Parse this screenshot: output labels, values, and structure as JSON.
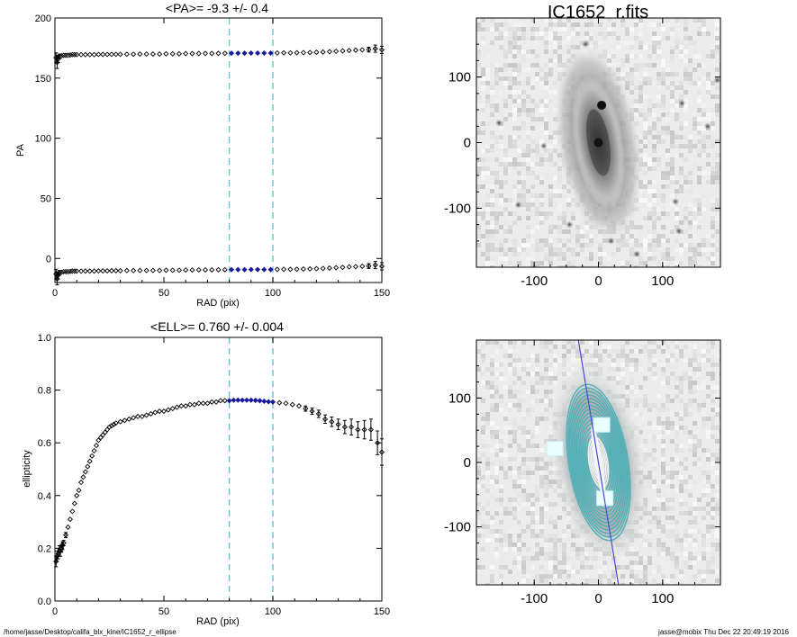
{
  "footer": {
    "path": "/home/jasse/Desktop/califa_blx_kine/IC1652_r_ellipse",
    "user_stamp": "jasse@mobix  Thu Dec 22 20:49:19 2016"
  },
  "colors": {
    "reference_line": "#6cc8d8",
    "highlight_points": "#1a1a9a",
    "major_axis_line": "#4a4ad0",
    "contours": "#4fb0b8"
  },
  "chart_data": [
    {
      "type": "scatter",
      "title": "<PA>=  -9.3 +/-   0.4",
      "xlabel": "RAD (pix)",
      "ylabel": "PA",
      "xlim": [
        0,
        150
      ],
      "ylim": [
        -20,
        200
      ],
      "xticks": [
        "0",
        "50",
        "100",
        "150"
      ],
      "yticks": [
        "0",
        "50",
        "100",
        "150",
        "200"
      ],
      "vlines": [
        80,
        100
      ],
      "highlight_range": [
        80,
        100
      ],
      "series": [
        {
          "x": [
            0.5,
            1,
            1.5,
            2,
            3,
            4,
            5,
            6,
            7,
            8,
            9,
            10,
            12,
            14,
            16,
            18,
            20,
            22,
            24,
            26,
            28,
            30,
            33,
            36,
            39,
            42,
            45,
            48,
            51,
            54,
            57,
            60,
            63,
            66,
            69,
            72,
            75,
            78,
            81,
            84,
            87,
            90,
            93,
            96,
            99,
            102,
            105,
            108,
            111,
            114,
            117,
            120,
            123,
            126,
            129,
            132,
            135,
            138,
            141,
            144,
            147,
            150
          ],
          "y": [
            -13,
            -17,
            -14,
            -12,
            -11.5,
            -11,
            -11,
            -11,
            -10.8,
            -10.5,
            -10.5,
            -10.5,
            -10.5,
            -10.5,
            -10.5,
            -10.5,
            -10.3,
            -10.3,
            -10.3,
            -10.2,
            -10.2,
            -10.2,
            -10.1,
            -10.1,
            -10,
            -10,
            -10,
            -10,
            -9.8,
            -9.8,
            -9.8,
            -9.6,
            -9.6,
            -9.5,
            -9.5,
            -9.5,
            -9.4,
            -9.4,
            -9.3,
            -9.3,
            -9.3,
            -9.2,
            -9.2,
            -9.2,
            -9.2,
            -9.1,
            -9,
            -9,
            -8.9,
            -8.8,
            -8.7,
            -8.5,
            -8.3,
            -8,
            -7.7,
            -7.4,
            -7,
            -6.8,
            -6.5,
            -6.3,
            -5.5,
            -6.5
          ],
          "err": [
            4,
            5,
            3,
            2,
            1.5,
            1,
            1,
            0.8,
            0.8,
            0.6,
            0.6,
            0.5,
            0.5,
            0.5,
            0.5,
            0.5,
            0.4,
            0.4,
            0.4,
            0.4,
            0.4,
            0.4,
            0.4,
            0.4,
            0.4,
            0.4,
            0.4,
            0.4,
            0.4,
            0.4,
            0.4,
            0.4,
            0.4,
            0.4,
            0.4,
            0.4,
            0.4,
            0.4,
            0.4,
            0.4,
            0.4,
            0.4,
            0.4,
            0.4,
            0.4,
            0.5,
            0.5,
            0.5,
            0.5,
            0.5,
            0.6,
            0.6,
            0.7,
            0.8,
            0.9,
            1,
            1.2,
            1.4,
            1.6,
            2,
            3,
            3
          ]
        }
      ],
      "mirror_offset": 180
    },
    {
      "type": "scatter",
      "title": "<ELL>= 0.760 +/-   0.004",
      "xlabel": "RAD (pix)",
      "ylabel": "ellipticity",
      "xlim": [
        0,
        150
      ],
      "ylim": [
        0,
        1
      ],
      "xticks": [
        "0",
        "50",
        "100",
        "150"
      ],
      "yticks": [
        "0.0",
        "0.2",
        "0.4",
        "0.6",
        "0.8",
        "1.0"
      ],
      "vlines": [
        80,
        100
      ],
      "highlight_range": [
        80,
        100
      ],
      "series": [
        {
          "x": [
            0.5,
            1,
            1.5,
            2,
            2.5,
            3,
            3.5,
            4,
            5,
            6,
            7,
            8,
            9,
            10,
            11,
            12,
            13,
            14,
            15,
            16,
            17,
            18,
            19,
            20,
            21,
            22,
            23,
            24,
            25,
            26,
            27,
            28,
            30,
            32,
            34,
            36,
            38,
            40,
            42,
            44,
            46,
            48,
            50,
            52,
            54,
            56,
            58,
            60,
            62,
            64,
            66,
            68,
            70,
            72,
            74,
            76,
            78,
            80,
            82,
            84,
            86,
            88,
            90,
            92,
            94,
            96,
            98,
            100,
            103,
            106,
            109,
            112,
            115,
            118,
            121,
            124,
            127,
            130,
            133,
            136,
            139,
            142,
            145,
            148,
            150
          ],
          "y": [
            0.15,
            0.17,
            0.18,
            0.19,
            0.19,
            0.2,
            0.21,
            0.22,
            0.25,
            0.28,
            0.31,
            0.34,
            0.37,
            0.4,
            0.42,
            0.45,
            0.47,
            0.49,
            0.51,
            0.53,
            0.55,
            0.57,
            0.59,
            0.61,
            0.62,
            0.63,
            0.64,
            0.65,
            0.66,
            0.665,
            0.67,
            0.675,
            0.68,
            0.685,
            0.69,
            0.695,
            0.7,
            0.7,
            0.705,
            0.71,
            0.715,
            0.72,
            0.72,
            0.725,
            0.73,
            0.735,
            0.74,
            0.74,
            0.745,
            0.745,
            0.75,
            0.75,
            0.75,
            0.755,
            0.755,
            0.76,
            0.76,
            0.76,
            0.762,
            0.762,
            0.762,
            0.762,
            0.762,
            0.761,
            0.76,
            0.758,
            0.756,
            0.755,
            0.752,
            0.75,
            0.745,
            0.74,
            0.73,
            0.72,
            0.71,
            0.69,
            0.68,
            0.67,
            0.66,
            0.66,
            0.65,
            0.65,
            0.65,
            0.6,
            0.565
          ],
          "err": [
            0.02,
            0.02,
            0.02,
            0.02,
            0.02,
            0.015,
            0.015,
            0.01,
            0.01,
            0.008,
            0.008,
            0.006,
            0.006,
            0.005,
            0.005,
            0.005,
            0.005,
            0.004,
            0.004,
            0.004,
            0.004,
            0.004,
            0.004,
            0.004,
            0.004,
            0.004,
            0.004,
            0.004,
            0.004,
            0.004,
            0.004,
            0.004,
            0.004,
            0.004,
            0.004,
            0.004,
            0.004,
            0.004,
            0.004,
            0.004,
            0.004,
            0.004,
            0.004,
            0.004,
            0.004,
            0.004,
            0.004,
            0.004,
            0.004,
            0.004,
            0.004,
            0.004,
            0.004,
            0.004,
            0.004,
            0.004,
            0.004,
            0.004,
            0.004,
            0.004,
            0.004,
            0.004,
            0.004,
            0.004,
            0.004,
            0.004,
            0.004,
            0.004,
            0.005,
            0.006,
            0.007,
            0.008,
            0.01,
            0.012,
            0.014,
            0.016,
            0.018,
            0.02,
            0.025,
            0.03,
            0.03,
            0.035,
            0.04,
            0.045,
            0.05
          ]
        }
      ]
    },
    {
      "type": "heatmap",
      "title": "IC1652_r.fits",
      "xlim": [
        -190,
        190
      ],
      "ylim": [
        -190,
        190
      ],
      "xticks": [
        "-100",
        "0",
        "100"
      ],
      "yticks": [
        "-100",
        "0",
        "100"
      ],
      "galaxy": {
        "center": [
          0,
          0
        ],
        "semi_major": 150,
        "axis_ratio": 0.24,
        "pa_deg": -9.3
      },
      "bright_knots": [
        [
          5,
          57
        ],
        [
          0,
          0
        ]
      ],
      "field_stars": [
        [
          -125,
          -95
        ],
        [
          -85,
          -5
        ],
        [
          20,
          -150
        ],
        [
          130,
          60
        ],
        [
          185,
          95
        ],
        [
          170,
          25
        ],
        [
          -45,
          -125
        ],
        [
          120,
          -90
        ],
        [
          -20,
          150
        ],
        [
          60,
          -170
        ],
        [
          125,
          -135
        ],
        [
          -155,
          30
        ]
      ]
    },
    {
      "type": "heatmap",
      "title": "",
      "xlim": [
        -190,
        190
      ],
      "ylim": [
        -190,
        190
      ],
      "xticks": [
        "-100",
        "0",
        "100"
      ],
      "yticks": [
        "-100",
        "0",
        "100"
      ],
      "contour_levels": 22,
      "major_axis_pa_deg": -9.3,
      "masked_regions": [
        [
          5,
          57
        ],
        [
          10,
          -57
        ],
        [
          -68,
          20
        ]
      ]
    }
  ]
}
